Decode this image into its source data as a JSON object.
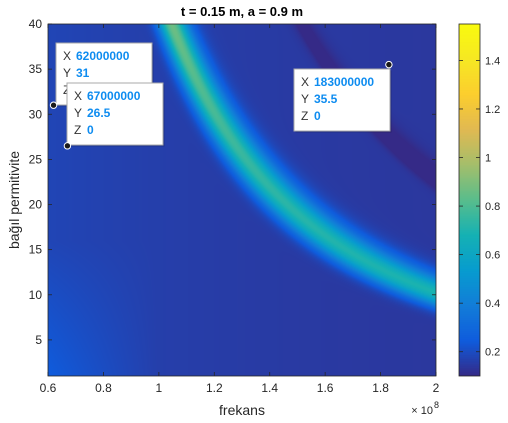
{
  "chart_data": {
    "type": "heatmap",
    "title": "t = 0.15 m, a = 0.9 m",
    "xlabel": "frekans",
    "ylabel": "bağıl permitivite",
    "xlim": [
      60000000,
      200000000
    ],
    "ylim": [
      1,
      40
    ],
    "x_exponent_label": "× 10",
    "x_exponent_power": "8",
    "x_ticks": [
      60000000,
      80000000,
      100000000,
      120000000,
      140000000,
      160000000,
      180000000,
      200000000
    ],
    "x_tick_labels": [
      "0.6",
      "0.8",
      "1",
      "1.2",
      "1.4",
      "1.6",
      "1.8",
      "2"
    ],
    "y_ticks": [
      5,
      10,
      15,
      20,
      25,
      30,
      35,
      40
    ],
    "y_tick_labels": [
      "5",
      "10",
      "15",
      "20",
      "25",
      "30",
      "35",
      "40"
    ],
    "colorbar": {
      "range": [
        0.1,
        1.55
      ],
      "ticks": [
        0.2,
        0.4,
        0.6,
        0.8,
        1,
        1.2,
        1.4
      ],
      "tick_labels": [
        "0.2",
        "0.4",
        "0.6",
        "0.8",
        "1",
        "1.2",
        "1.4"
      ],
      "colormap": "parula"
    },
    "datatips": [
      {
        "x": 62000000,
        "y": 31,
        "z": 0,
        "x_label": "62000000",
        "y_label": "31",
        "z_label": "0"
      },
      {
        "x": 67000000,
        "y": 26.5,
        "z": 0,
        "x_label": "67000000",
        "y_label": "26.5",
        "z_label": "0"
      },
      {
        "x": 183000000,
        "y": 35.5,
        "z": 0,
        "x_label": "183000000",
        "y_label": "35.5",
        "z_label": "0"
      }
    ],
    "datatip_keys": [
      "X",
      "Y",
      "Z"
    ]
  }
}
